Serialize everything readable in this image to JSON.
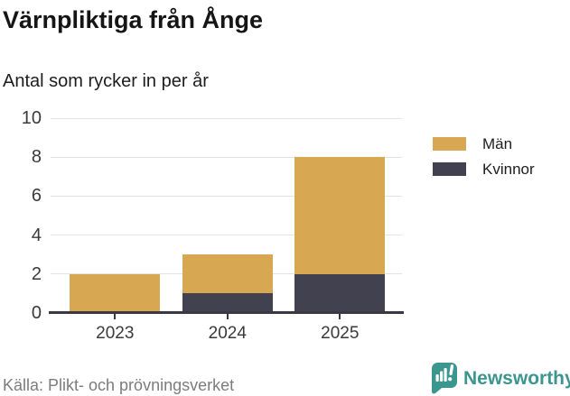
{
  "header": {
    "title": "Värnpliktiga från Ånge",
    "subtitle": "Antal som rycker in per år"
  },
  "chart_data": {
    "type": "bar",
    "stacked": true,
    "title": "Värnpliktiga från Ånge",
    "subtitle": "Antal som rycker in per år",
    "categories": [
      "2023",
      "2024",
      "2025"
    ],
    "series": [
      {
        "name": "Kvinnor",
        "color": "#424150",
        "values": [
          0,
          1,
          2
        ]
      },
      {
        "name": "Män",
        "color": "#d7a851",
        "values": [
          2,
          2,
          6
        ]
      }
    ],
    "totals": [
      2,
      3,
      8
    ],
    "xlabel": "",
    "ylabel": "",
    "ylim": [
      0,
      10
    ],
    "yticks": [
      0,
      2,
      4,
      6,
      8,
      10
    ],
    "grid": true,
    "legend_position": "right"
  },
  "legend": {
    "items": [
      {
        "label": "Män",
        "color": "#d7a851"
      },
      {
        "label": "Kvinnor",
        "color": "#424150"
      }
    ]
  },
  "footer": {
    "source": "Källa: Plikt- och prövningsverket",
    "brand": "Newsworthy"
  },
  "colors": {
    "man": "#d7a851",
    "kvinnor": "#424150",
    "axis": "#3a3943",
    "gridline": "#e2e2e2",
    "brand_teal": "#3b968f",
    "source_text": "#7c7c7c"
  }
}
